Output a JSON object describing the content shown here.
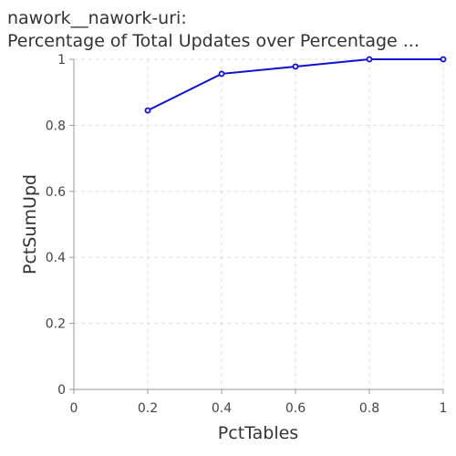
{
  "chart_data": {
    "type": "line",
    "title": "nawork__nawork-uri:",
    "subtitle": "Percentage of Total Updates over Percentage ...",
    "xlabel": "PctTables",
    "ylabel": "PctSumUpd",
    "xlim": [
      0,
      1
    ],
    "ylim": [
      0,
      1
    ],
    "x_ticks": [
      "0",
      "0.2",
      "0.4",
      "0.6",
      "0.8",
      "1"
    ],
    "y_ticks": [
      "0",
      "0.2",
      "0.4",
      "0.6",
      "0.8",
      "1"
    ],
    "grid": true,
    "series": [
      {
        "x": [
          0.2,
          0.4,
          0.6,
          0.8,
          1.0
        ],
        "y": [
          0.845,
          0.956,
          0.978,
          1.0,
          1.0
        ],
        "color": "#1010d0"
      }
    ]
  }
}
